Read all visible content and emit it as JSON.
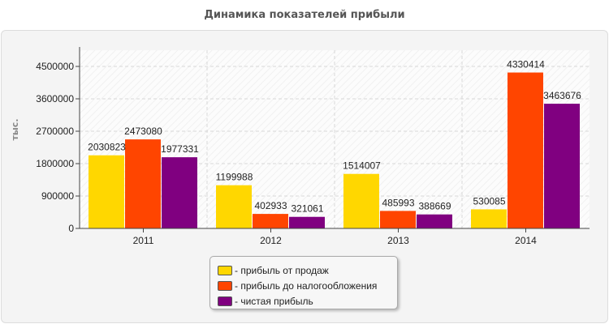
{
  "chart_data": {
    "type": "bar",
    "title": "Динамика показателей прибыли",
    "ylabel": "тыс.",
    "xlabel": "",
    "categories": [
      "2011",
      "2012",
      "2013",
      "2014"
    ],
    "ylim": [
      0,
      4950000
    ],
    "yticks": [
      0,
      900000,
      1800000,
      2700000,
      3600000,
      4500000
    ],
    "grid": true,
    "legend_position": "bottom",
    "series": [
      {
        "name": "прибыль от продаж",
        "color": "#FFD700",
        "values": [
          2030823,
          1199988,
          1514007,
          530085
        ]
      },
      {
        "name": "прибыль до налогообложения",
        "color": "#FF4500",
        "values": [
          2473080,
          402933,
          485993,
          4330414
        ]
      },
      {
        "name": "чистая прибыль",
        "color": "#800080",
        "values": [
          1977331,
          321061,
          388669,
          3463676
        ]
      }
    ]
  }
}
